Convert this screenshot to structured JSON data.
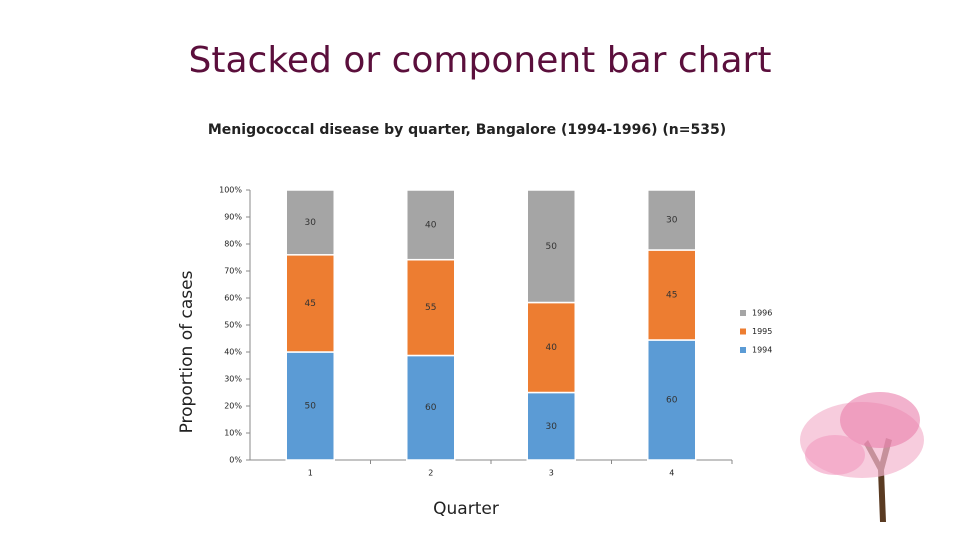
{
  "chart_data": {
    "type": "bar",
    "stacking": "percent",
    "page_title": "Stacked or component bar chart",
    "title": "Menigococcal disease by quarter, Bangalore (1994-1996) (n=535)",
    "x_label": "Quarter",
    "y_label": "Proportion of cases",
    "categories": [
      "1",
      "2",
      "3",
      "4"
    ],
    "series": [
      {
        "name": "1994",
        "color": "#5b9bd5",
        "values": [
          50,
          60,
          30,
          60
        ]
      },
      {
        "name": "1995",
        "color": "#ed7d31",
        "values": [
          45,
          55,
          40,
          45
        ]
      },
      {
        "name": "1996",
        "color": "#a5a5a5",
        "values": [
          30,
          40,
          50,
          30
        ]
      }
    ],
    "ylim": [
      0,
      100
    ],
    "yticks": [
      {
        "value": 0,
        "label": "0%"
      },
      {
        "value": 10,
        "label": "10%"
      },
      {
        "value": 20,
        "label": "20%"
      },
      {
        "value": 30,
        "label": "30%"
      },
      {
        "value": 40,
        "label": "40%"
      },
      {
        "value": 50,
        "label": "50%"
      },
      {
        "value": 60,
        "label": "60%"
      },
      {
        "value": 70,
        "label": "70%"
      },
      {
        "value": 80,
        "label": "80%"
      },
      {
        "value": 90,
        "label": "90%"
      },
      {
        "value": 100,
        "label": "100%"
      }
    ],
    "legend": "right"
  }
}
